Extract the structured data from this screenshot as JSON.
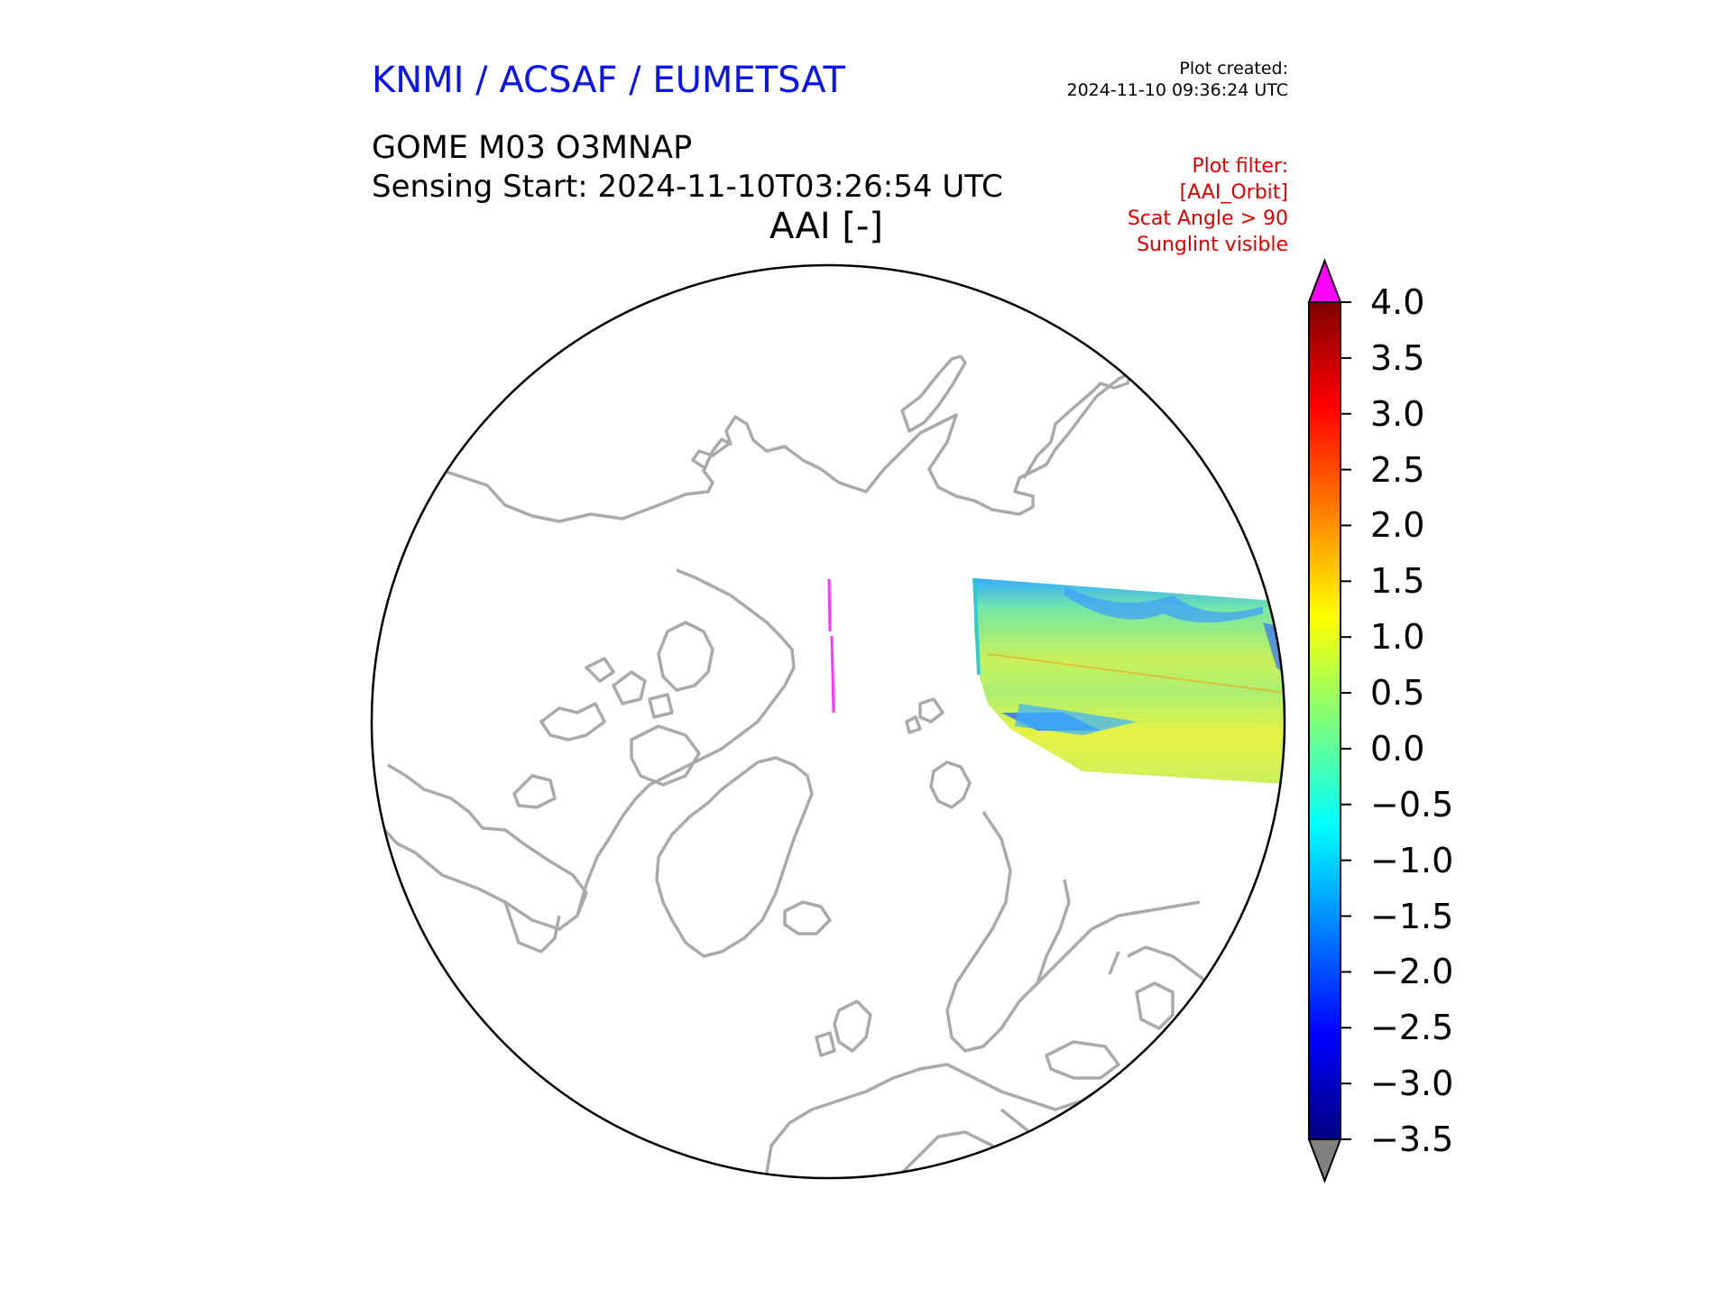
{
  "header": {
    "organization": "KNMI / ACSAF / EUMETSAT",
    "plot_created_label": "Plot created:",
    "plot_created_time": "2024-11-10 09:36:24 UTC",
    "product": "GOME M03 O3MNAP",
    "sensing_start": "Sensing Start: 2024-11-10T03:26:54 UTC",
    "variable": "AAI [-]"
  },
  "plot_filter": {
    "label": "Plot filter:",
    "lines": [
      "[AAI_Orbit]",
      "Scat Angle > 90",
      "Sunglint visible"
    ]
  },
  "colorbar": {
    "min": -3.5,
    "max": 4.0,
    "ticks": [
      "4.0",
      "3.5",
      "3.0",
      "2.5",
      "2.0",
      "1.5",
      "1.0",
      "0.5",
      "0.0",
      "−0.5",
      "−1.0",
      "−1.5",
      "−2.0",
      "−2.5",
      "−3.0",
      "−3.5"
    ],
    "tick_values": [
      4.0,
      3.5,
      3.0,
      2.5,
      2.0,
      1.5,
      1.0,
      0.5,
      0.0,
      -0.5,
      -1.0,
      -1.5,
      -2.0,
      -2.5,
      -3.0,
      -3.5
    ],
    "colormap": "jet",
    "over_color": "#ff00ff",
    "under_color": "#808080"
  },
  "map": {
    "projection": "north-polar-stereographic",
    "coastline_color": "#aaaaaa",
    "swath_colormap": "jet",
    "outlier_track_color": "#ff33ff"
  }
}
